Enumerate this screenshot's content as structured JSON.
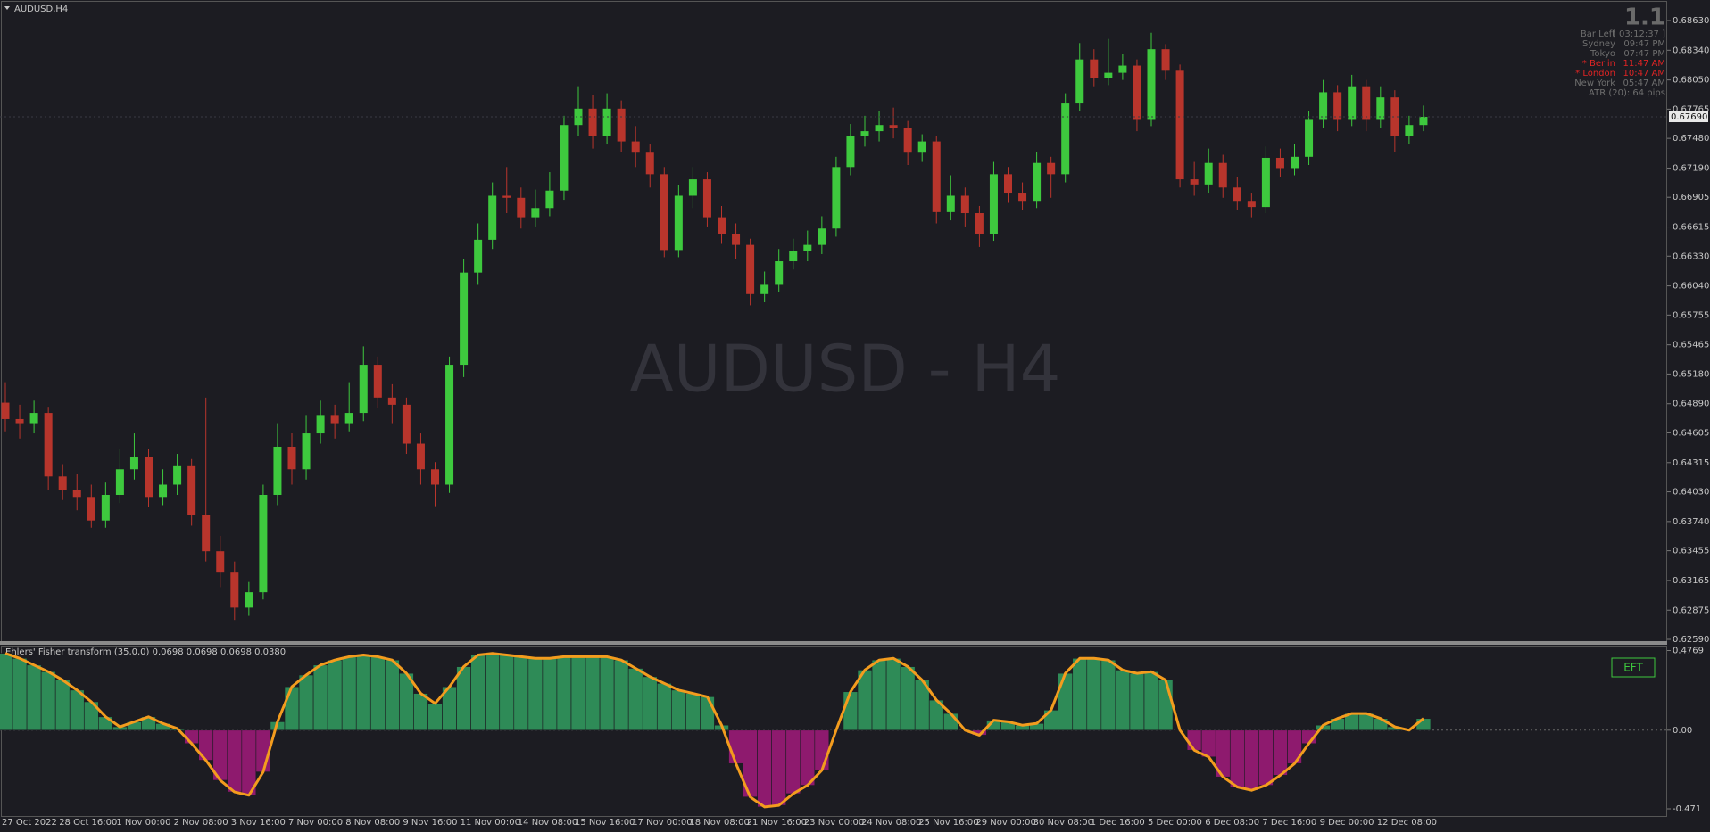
{
  "chart_data": [
    {
      "type": "candlestick",
      "title": "AUDUSD,H4",
      "watermark": "AUDUSD - H4",
      "up_color": "#3ec93e",
      "down_color": "#b8352c",
      "ylim": [
        0.6259,
        0.6863
      ],
      "yticks": [
        {
          "value": 0.6863,
          "label": "0.68630"
        },
        {
          "value": 0.6834,
          "label": "0.68340"
        },
        {
          "value": 0.6805,
          "label": "0.68050"
        },
        0.67765,
        {
          "value": 0.6748,
          "label": "0.67480"
        },
        {
          "value": 0.6719,
          "label": "0.67190"
        },
        0.66905,
        0.66615,
        {
          "value": 0.6633,
          "label": "0.66330"
        },
        {
          "value": 0.6604,
          "label": "0.66040"
        },
        0.65755,
        0.65465,
        {
          "value": 0.6518,
          "label": "0.65180"
        },
        {
          "value": 0.6489,
          "label": "0.64890"
        },
        0.64605,
        0.64315,
        {
          "value": 0.6403,
          "label": "0.64030"
        },
        {
          "value": 0.6374,
          "label": "0.63740"
        },
        0.63455,
        0.63165,
        0.62875,
        {
          "value": 0.6259,
          "label": "0.62590"
        }
      ],
      "current_price": {
        "value": 0.6769,
        "label": "0.67690"
      },
      "categories": [
        "27 Oct 2022",
        null,
        null,
        null,
        "28 Oct 16:00",
        null,
        null,
        null,
        "1 Nov 00:00",
        null,
        null,
        null,
        "2 Nov 08:00",
        null,
        null,
        null,
        "3 Nov 16:00",
        null,
        null,
        null,
        "7 Nov 00:00",
        null,
        null,
        null,
        "8 Nov 08:00",
        null,
        null,
        null,
        "9 Nov 16:00",
        null,
        null,
        null,
        "11 Nov 00:00",
        null,
        null,
        null,
        "14 Nov 08:00",
        null,
        null,
        null,
        "15 Nov 16:00",
        null,
        null,
        null,
        "17 Nov 00:00",
        null,
        null,
        null,
        "18 Nov 08:00",
        null,
        null,
        null,
        "21 Nov 16:00",
        null,
        null,
        null,
        "23 Nov 00:00",
        null,
        null,
        null,
        "24 Nov 08:00",
        null,
        null,
        null,
        "25 Nov 16:00",
        null,
        null,
        null,
        "29 Nov 00:00",
        null,
        null,
        null,
        "30 Nov 08:00",
        null,
        null,
        null,
        "1 Dec 16:00",
        null,
        null,
        null,
        "5 Dec 00:00",
        null,
        null,
        null,
        "6 Dec 08:00",
        null,
        null,
        null,
        "7 Dec 16:00",
        null,
        null,
        null,
        "9 Dec 00:00",
        null,
        null,
        null,
        "12 Dec 08:00",
        null,
        null,
        null
      ],
      "open": [
        0.649,
        0.6474,
        0.647,
        0.648,
        0.6418,
        0.6405,
        0.6398,
        0.6375,
        0.64,
        0.6425,
        0.6437,
        0.6398,
        0.641,
        0.6428,
        0.638,
        0.6345,
        0.6325,
        0.629,
        0.6305,
        0.64,
        0.6447,
        0.6425,
        0.646,
        0.6478,
        0.647,
        0.648,
        0.6527,
        0.6495,
        0.6488,
        0.645,
        0.6425,
        0.641,
        0.6527,
        0.6617,
        0.6649,
        0.6692,
        0.669,
        0.6671,
        0.668,
        0.6697,
        0.6761,
        0.6777,
        0.675,
        0.6777,
        0.6745,
        0.6734,
        0.6713,
        0.6639,
        0.6692,
        0.6708,
        0.6671,
        0.6655,
        0.6644,
        0.6596,
        0.6605,
        0.6628,
        0.6638,
        0.6644,
        0.666,
        0.672,
        0.675,
        0.6755,
        0.6761,
        0.6758,
        0.6734,
        0.6745,
        0.6676,
        0.6692,
        0.6675,
        0.6655,
        0.6713,
        0.6695,
        0.6687,
        0.6724,
        0.6713,
        0.6782,
        0.6825,
        0.6807,
        0.6812,
        0.6819,
        0.6766,
        0.6835,
        0.6814,
        0.6708,
        0.6703,
        0.6724,
        0.67,
        0.6687,
        0.6681,
        0.6729,
        0.6719,
        0.673,
        0.6766,
        0.6793,
        0.6766,
        0.6798,
        0.6766,
        0.6788,
        0.675,
        0.6761
      ],
      "high": [
        0.651,
        0.6488,
        0.6492,
        0.6486,
        0.643,
        0.642,
        0.641,
        0.6412,
        0.6445,
        0.646,
        0.6445,
        0.6425,
        0.644,
        0.6435,
        0.6495,
        0.636,
        0.6335,
        0.6315,
        0.641,
        0.647,
        0.646,
        0.6478,
        0.6492,
        0.6488,
        0.651,
        0.6545,
        0.6535,
        0.6508,
        0.6495,
        0.646,
        0.6432,
        0.6535,
        0.663,
        0.6665,
        0.6705,
        0.672,
        0.67,
        0.6698,
        0.6715,
        0.677,
        0.6798,
        0.679,
        0.6792,
        0.6785,
        0.676,
        0.6742,
        0.672,
        0.6702,
        0.672,
        0.6715,
        0.6682,
        0.6665,
        0.665,
        0.6618,
        0.664,
        0.665,
        0.6658,
        0.6672,
        0.673,
        0.6762,
        0.677,
        0.6775,
        0.6778,
        0.6765,
        0.6752,
        0.675,
        0.6712,
        0.67,
        0.6682,
        0.6725,
        0.672,
        0.6705,
        0.6735,
        0.673,
        0.6792,
        0.6841,
        0.6835,
        0.6845,
        0.683,
        0.6825,
        0.6851,
        0.684,
        0.682,
        0.6725,
        0.6738,
        0.6732,
        0.671,
        0.6695,
        0.674,
        0.6738,
        0.6742,
        0.6775,
        0.6805,
        0.68,
        0.681,
        0.6805,
        0.6798,
        0.6795,
        0.677,
        0.678
      ],
      "low": [
        0.6462,
        0.6455,
        0.646,
        0.6405,
        0.6395,
        0.6385,
        0.6368,
        0.6368,
        0.6392,
        0.6415,
        0.6388,
        0.639,
        0.64,
        0.637,
        0.6335,
        0.631,
        0.6278,
        0.6282,
        0.6298,
        0.639,
        0.641,
        0.6415,
        0.645,
        0.6455,
        0.6462,
        0.6472,
        0.6485,
        0.647,
        0.644,
        0.641,
        0.6389,
        0.6402,
        0.6515,
        0.6605,
        0.664,
        0.6675,
        0.666,
        0.6662,
        0.6672,
        0.6688,
        0.675,
        0.6738,
        0.6742,
        0.6735,
        0.672,
        0.67,
        0.6632,
        0.6632,
        0.668,
        0.6662,
        0.6645,
        0.663,
        0.6585,
        0.6588,
        0.6598,
        0.662,
        0.6628,
        0.6635,
        0.6652,
        0.6712,
        0.674,
        0.6745,
        0.6748,
        0.6722,
        0.6725,
        0.6665,
        0.6668,
        0.6662,
        0.6642,
        0.6648,
        0.6685,
        0.6678,
        0.668,
        0.669,
        0.6705,
        0.6775,
        0.6798,
        0.68,
        0.6805,
        0.6755,
        0.676,
        0.6805,
        0.67,
        0.6692,
        0.6695,
        0.669,
        0.6678,
        0.6671,
        0.6675,
        0.671,
        0.6712,
        0.6722,
        0.6758,
        0.6755,
        0.676,
        0.6755,
        0.6758,
        0.6735,
        0.6742,
        0.6755
      ],
      "close": [
        0.6474,
        0.647,
        0.648,
        0.6418,
        0.6405,
        0.6398,
        0.6375,
        0.64,
        0.6425,
        0.6437,
        0.6398,
        0.641,
        0.6428,
        0.638,
        0.6345,
        0.6325,
        0.629,
        0.6305,
        0.64,
        0.6447,
        0.6425,
        0.646,
        0.6478,
        0.647,
        0.648,
        0.6527,
        0.6495,
        0.6488,
        0.645,
        0.6425,
        0.641,
        0.6527,
        0.6617,
        0.6649,
        0.6692,
        0.669,
        0.6671,
        0.668,
        0.6697,
        0.6761,
        0.6777,
        0.675,
        0.6777,
        0.6745,
        0.6734,
        0.6713,
        0.6639,
        0.6692,
        0.6708,
        0.6671,
        0.6655,
        0.6644,
        0.6596,
        0.6605,
        0.6628,
        0.6638,
        0.6644,
        0.666,
        0.672,
        0.675,
        0.6755,
        0.6761,
        0.6758,
        0.6734,
        0.6745,
        0.6676,
        0.6692,
        0.6675,
        0.6655,
        0.6713,
        0.6695,
        0.6687,
        0.6724,
        0.6713,
        0.6782,
        0.6825,
        0.6807,
        0.6812,
        0.6819,
        0.6766,
        0.6835,
        0.6814,
        0.6708,
        0.6703,
        0.6724,
        0.67,
        0.6687,
        0.6681,
        0.6729,
        0.6719,
        0.673,
        0.6766,
        0.6793,
        0.6766,
        0.6798,
        0.6766,
        0.6788,
        0.675,
        0.6761,
        0.6769
      ],
      "info_panel": {
        "version": "1.1",
        "rows": [
          {
            "label": "Bar Left",
            "value": "[ 03:12:37 ]",
            "color": "#6e6e6e"
          },
          {
            "label": "Sydney",
            "value": "09:47 PM",
            "color": "#6e6e6e"
          },
          {
            "label": "Tokyo",
            "value": "07:47 PM",
            "color": "#6e6e6e"
          },
          {
            "label": "* Berlin",
            "value": "11:47 AM",
            "color": "#e02424"
          },
          {
            "label": "* London",
            "value": "10:47 AM",
            "color": "#e02424"
          },
          {
            "label": "New York",
            "value": "05:47 AM",
            "color": "#6e6e6e"
          }
        ],
        "atr": "ATR (20): 64 pips"
      }
    },
    {
      "type": "bar",
      "title": "Ehlers' Fisher transform (35,0,0) 0.0698 0.0698 0.0698 0.0380",
      "button": "EFT",
      "positive_color": "#2e8b57",
      "negative_color": "#8e1a6e",
      "line_color": "#f39c1e",
      "ylim": [
        -0.471,
        0.4769
      ],
      "yticks": [
        0.4769,
        {
          "value": 0,
          "label": "0.00"
        },
        -0.471
      ],
      "values": [
        0.46,
        0.43,
        0.39,
        0.35,
        0.3,
        0.24,
        0.17,
        0.08,
        0.02,
        0.05,
        0.08,
        0.04,
        0.01,
        -0.08,
        -0.18,
        -0.3,
        -0.37,
        -0.39,
        -0.25,
        0.05,
        0.26,
        0.33,
        0.39,
        0.42,
        0.44,
        0.45,
        0.44,
        0.42,
        0.34,
        0.22,
        0.16,
        0.26,
        0.38,
        0.45,
        0.46,
        0.45,
        0.44,
        0.43,
        0.43,
        0.44,
        0.44,
        0.44,
        0.44,
        0.42,
        0.37,
        0.32,
        0.28,
        0.24,
        0.22,
        0.2,
        0.03,
        -0.2,
        -0.4,
        -0.46,
        -0.45,
        -0.38,
        -0.33,
        -0.24,
        0,
        0.23,
        0.36,
        0.42,
        0.43,
        0.38,
        0.3,
        0.18,
        0.1,
        0,
        -0.03,
        0.06,
        0.05,
        0.03,
        0.04,
        0.12,
        0.34,
        0.43,
        0.43,
        0.42,
        0.36,
        0.34,
        0.35,
        0.3,
        0,
        -0.12,
        -0.16,
        -0.28,
        -0.34,
        -0.36,
        -0.33,
        -0.27,
        -0.2,
        -0.08,
        0.03,
        0.07,
        0.1,
        0.1,
        0.07,
        0.02,
        0,
        0.0698
      ]
    }
  ]
}
